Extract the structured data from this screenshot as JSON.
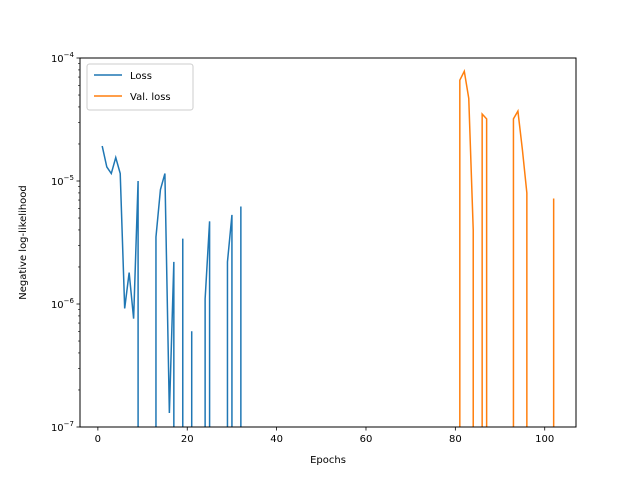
{
  "chart_data": {
    "type": "line",
    "title": "",
    "xlabel": "Epochs",
    "ylabel": "Negative log-likelihood",
    "xlim": [
      -4,
      107
    ],
    "ylim": [
      1e-07,
      0.0001
    ],
    "yscale": "log",
    "x_ticks": [
      0,
      20,
      40,
      60,
      80,
      100
    ],
    "y_ticks": [
      {
        "value": 1e-07,
        "base": "10",
        "exp": "−7"
      },
      {
        "value": 1e-06,
        "base": "10",
        "exp": "−6"
      },
      {
        "value": 1e-05,
        "base": "10",
        "exp": "−5"
      },
      {
        "value": 0.0001,
        "base": "10",
        "exp": "−4"
      }
    ],
    "grid": false,
    "legend_position": "top-left",
    "series": [
      {
        "name": "Loss",
        "color": "#1f77b4",
        "points": [
          [
            1,
            1.9e-05
          ],
          [
            2,
            1.3e-05
          ],
          [
            3,
            1.15e-05
          ],
          [
            4,
            1.55e-05
          ],
          [
            5,
            1.15e-05
          ],
          [
            6,
            9.2e-07
          ],
          [
            7,
            1.8e-06
          ],
          [
            8,
            7.6e-07
          ],
          [
            9,
            1e-05
          ],
          [
            9,
            1e-07
          ],
          null,
          [
            13,
            1e-07
          ],
          [
            13,
            3.5e-06
          ],
          [
            14,
            8.5e-06
          ],
          [
            15,
            1.15e-05
          ],
          [
            16,
            1.3e-07
          ],
          [
            17,
            2.2e-06
          ],
          [
            17,
            1e-07
          ],
          null,
          [
            19,
            1e-07
          ],
          [
            19,
            3.4e-06
          ],
          [
            19,
            1e-07
          ],
          null,
          [
            21,
            1e-07
          ],
          [
            21,
            6e-07
          ],
          [
            21,
            1e-07
          ],
          null,
          [
            24,
            1e-07
          ],
          [
            24,
            1.1e-06
          ],
          [
            25,
            4.7e-06
          ],
          [
            25,
            1e-07
          ],
          null,
          [
            29,
            1e-07
          ],
          [
            29,
            2.2e-06
          ],
          [
            30,
            5.3e-06
          ],
          [
            30,
            1e-07
          ],
          null,
          [
            32,
            1e-07
          ],
          [
            32,
            6.2e-06
          ],
          [
            32,
            1e-07
          ]
        ]
      },
      {
        "name": "Val. loss",
        "color": "#ff7f0e",
        "points": [
          [
            81,
            1e-07
          ],
          [
            81,
            6.6e-05
          ],
          [
            82,
            7.8e-05
          ],
          [
            83,
            4.7e-05
          ],
          [
            84,
            4e-06
          ],
          [
            84,
            1e-07
          ],
          null,
          [
            86,
            1e-07
          ],
          [
            86,
            3.5e-05
          ],
          [
            87,
            3.2e-05
          ],
          [
            87,
            1e-07
          ],
          null,
          [
            93,
            1e-07
          ],
          [
            93,
            3.2e-05
          ],
          [
            94,
            3.7e-05
          ],
          [
            95,
            1.8e-05
          ],
          [
            96,
            8e-06
          ],
          [
            96,
            1e-07
          ],
          null,
          [
            102,
            1e-07
          ],
          [
            102,
            7.2e-06
          ],
          [
            102,
            1e-07
          ]
        ]
      }
    ]
  }
}
